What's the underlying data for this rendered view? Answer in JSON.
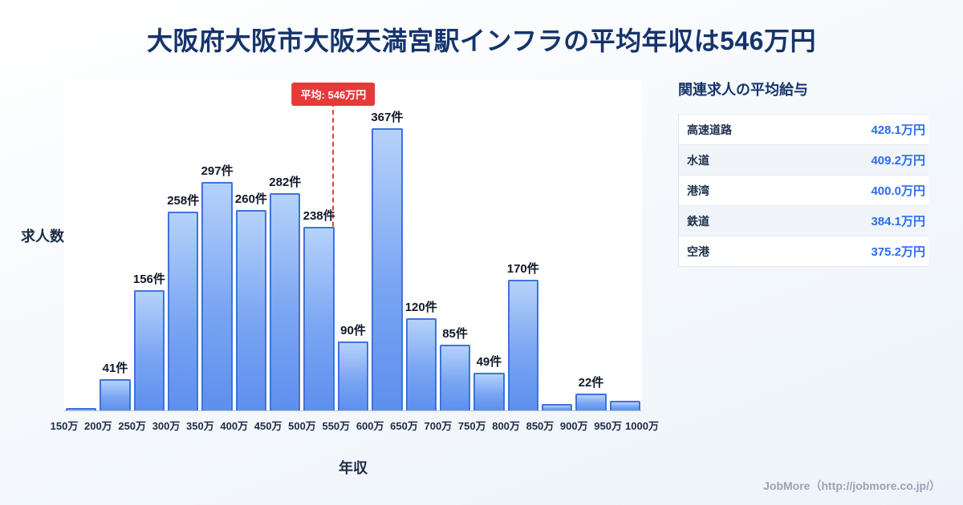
{
  "page": {
    "title": "大阪府大阪市大阪天満宮駅インフラの平均年収は546万円",
    "footer": "JobMore（http://jobmore.co.jp/）"
  },
  "chart_data": {
    "type": "bar",
    "title": "大阪府大阪市大阪天満宮駅インフラの平均年収は546万円",
    "xlabel": "年収",
    "ylabel": "求人数",
    "x_tick_labels": [
      "150万",
      "200万",
      "250万",
      "300万",
      "350万",
      "400万",
      "450万",
      "500万",
      "550万",
      "600万",
      "650万",
      "700万",
      "750万",
      "800万",
      "850万",
      "900万",
      "950万",
      "1000万"
    ],
    "values": [
      3,
      41,
      156,
      258,
      297,
      260,
      282,
      238,
      90,
      367,
      120,
      85,
      49,
      170,
      8,
      22,
      13
    ],
    "bar_labels": [
      "",
      "41件",
      "156件",
      "258件",
      "297件",
      "260件",
      "282件",
      "238件",
      "90件",
      "367件",
      "120件",
      "85件",
      "49件",
      "170件",
      "",
      "22件",
      ""
    ],
    "average_value": 546,
    "average_label": "平均: 546万円",
    "x_range": [
      150,
      1000
    ],
    "ylim": [
      0,
      430
    ],
    "grid": false,
    "legend": "none"
  },
  "side_panel": {
    "title": "関連求人の平均給与",
    "rows": [
      {
        "name": "高速道路",
        "value": "428.1万円"
      },
      {
        "name": "水道",
        "value": "409.2万円"
      },
      {
        "name": "港湾",
        "value": "400.0万円"
      },
      {
        "name": "鉄道",
        "value": "384.1万円"
      },
      {
        "name": "空港",
        "value": "375.2万円"
      }
    ]
  },
  "colors": {
    "title": "#16346b",
    "bar_fill_top": "#b6d2fa",
    "bar_fill_bottom": "#5e8fee",
    "bar_border": "#3e73dc",
    "average_line": "#e84040",
    "badge_bg": "#e53a3a",
    "value_blue": "#2b6cf0",
    "footer_gray": "#98a2b3"
  }
}
